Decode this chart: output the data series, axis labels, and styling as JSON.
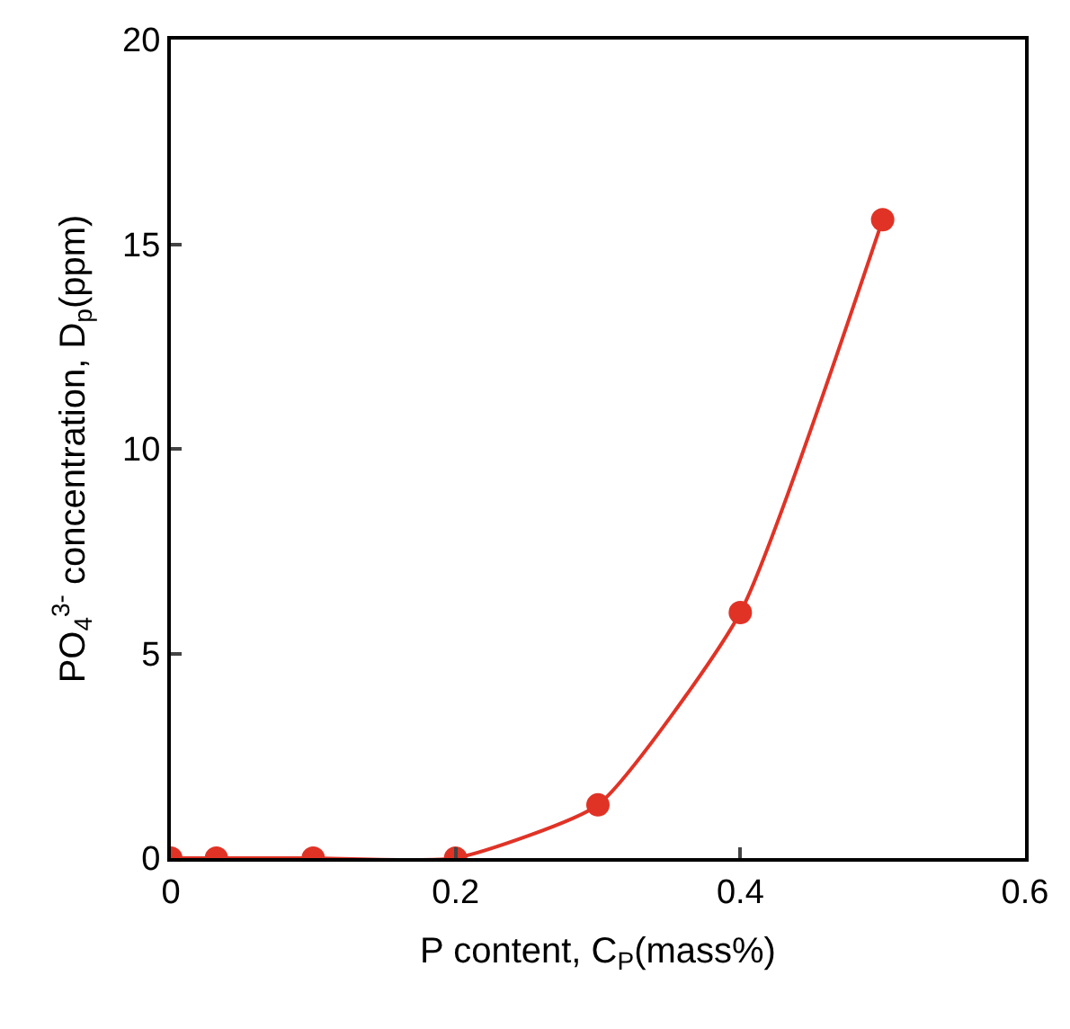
{
  "chart_data": {
    "type": "line",
    "xlabel": "P content, C$_{P}$(mass%)",
    "ylabel": "PO$_{4}$$^{3-}$ concentration, D$_{p}$(ppm)",
    "x": [
      0,
      0.032,
      0.1,
      0.2,
      0.3,
      0.4,
      0.5
    ],
    "series": [
      {
        "color": "#e03326",
        "values": [
          0,
          0,
          0,
          0,
          1.3,
          6.0,
          15.6
        ]
      }
    ],
    "xlim": [
      0,
      0.6
    ],
    "xticks": [
      0,
      0.2,
      0.4,
      0.6
    ],
    "ylim": [
      0,
      20
    ],
    "yticks": [
      0,
      5,
      10,
      15,
      20
    ],
    "marker": "circle",
    "line_style": "solid"
  }
}
